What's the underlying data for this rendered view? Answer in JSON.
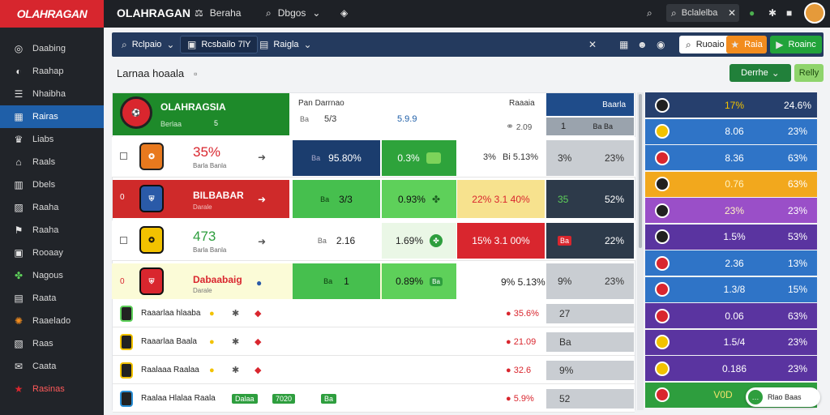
{
  "header": {
    "logo_text": "OLAHRAGAN",
    "brand": "OLAHRAGAN",
    "nav": [
      {
        "label": "Beraha"
      },
      {
        "label": "Dbgos"
      }
    ],
    "search_placeholder": "Bclalelba"
  },
  "sidebar": {
    "items": [
      {
        "label": "Daabing",
        "icon": "globe-icon"
      },
      {
        "label": "Raahap",
        "icon": "circle-icon"
      },
      {
        "label": "Nhaibha",
        "icon": "list-icon"
      },
      {
        "label": "Rairas",
        "icon": "grid-icon",
        "active": true
      },
      {
        "label": "Liabs",
        "icon": "trophy-icon"
      },
      {
        "label": "Raals",
        "icon": "home-icon"
      },
      {
        "label": "Dbels",
        "icon": "dashboard-icon"
      },
      {
        "label": "Raaha",
        "icon": "chart-icon"
      },
      {
        "label": "Raaha",
        "icon": "flag-icon"
      },
      {
        "label": "Rooaay",
        "icon": "box-icon"
      },
      {
        "label": "Nagous",
        "icon": "leaf-icon"
      },
      {
        "label": "Raata",
        "icon": "calendar-icon"
      },
      {
        "label": "Raaelado",
        "icon": "fire-icon"
      },
      {
        "label": "Raas",
        "icon": "note-icon"
      },
      {
        "label": "Caata",
        "icon": "chat-icon"
      },
      {
        "label": "Rasinas",
        "icon": "star-icon"
      }
    ]
  },
  "subbar": {
    "chip1": "Rclpaio",
    "chip2": "Rcsbailo 7lY",
    "chip3": "Raigla",
    "chip4": "Ruoaio",
    "orange_btn": "Raia",
    "green_btn": "Roainc"
  },
  "page": {
    "title": "Larnaa hoaala",
    "btn_green": "Derrhe",
    "btn_light": "Relly"
  },
  "table": {
    "featured_name": "OLAHRAGSIA",
    "featured_sub": "Berlaa",
    "featured_count": "5",
    "col_header1": "Pan Darrnao",
    "col_header2": "Raaaia",
    "col_header3": "Baarla",
    "header_small1": "Ba",
    "header_val1": "5/3",
    "header_val2": "5.9.9",
    "header_val3": "2.09",
    "header_val4": "1",
    "header_small2": "Ba Ba",
    "rows": [
      {
        "pct": "35%",
        "sub": "Barla Banla",
        "c1": "95.80%",
        "c2": "0.3%",
        "c3": "Ba",
        "c4": "3%",
        "c5": "Bi 5.13%",
        "c6": "3%",
        "c7": "23%"
      },
      {
        "name": "BILBABAR",
        "sub": "Darale",
        "c1": "3/3",
        "c2": "0.93%",
        "c3": "Ba",
        "c4": "22% 3.1 40%",
        "c5": "35",
        "c6": "52%"
      },
      {
        "pct": "473",
        "sub": "Barla Banla",
        "c1": "2.16",
        "c2": "1.69%",
        "c3": "Ba",
        "c4": "15% 3.1 00%",
        "c5": "Ba",
        "c6": "22%"
      },
      {
        "name": "Dabaabaig",
        "sub": "Darale",
        "c1": "1",
        "c2": "0.89%",
        "c3": "Ba",
        "c4": "9% 5.13%",
        "c5": "9%",
        "c6": "23%"
      }
    ],
    "list_rows": [
      {
        "name": "Raaarlaa hlaaba",
        "v1": "35.6%",
        "v2": "27"
      },
      {
        "name": "Raaarlaa Baala",
        "v1": "21.09",
        "v2": "Ba"
      },
      {
        "name": "Raalaaa Raalaa",
        "v1": "32.6",
        "v2": "9%"
      },
      {
        "name": "Raalaa Hlalaa Raala",
        "v1": "5.9%",
        "v2": "52",
        "p1": "Dalaa",
        "p2": "7020",
        "p3": "Ba"
      }
    ]
  },
  "side": {
    "rows": [
      {
        "v1": "17%",
        "v2": "24.6%",
        "color": "#263f6d",
        "icon": "#202020"
      },
      {
        "v1": "8.06",
        "v2": "23%",
        "color": "#2f74c7",
        "icon": "#f2c200"
      },
      {
        "v1": "8.36",
        "v2": "63%",
        "color": "#2f74c7",
        "icon": "#d9262e"
      },
      {
        "v1": "0.76",
        "v2": "63%",
        "color": "#f2a81d",
        "icon": "#202020"
      },
      {
        "v1": "23%",
        "v2": "23%",
        "color": "#9a4fc8",
        "icon": "#202020"
      },
      {
        "v1": "1.5%",
        "v2": "53%",
        "color": "#5a34a0",
        "icon": "#202020"
      },
      {
        "v1": "2.36",
        "v2": "13%",
        "color": "#2f74c7",
        "icon": "#d9262e"
      },
      {
        "v1": "1.3/8",
        "v2": "15%",
        "color": "#2f74c7",
        "icon": "#d9262e"
      },
      {
        "v1": "0.06",
        "v2": "63%",
        "color": "#5a34a0",
        "icon": "#d9262e"
      },
      {
        "v1": "1.5/4",
        "v2": "23%",
        "color": "#5a34a0",
        "icon": "#f2c200"
      },
      {
        "v1": "0.186",
        "v2": "23%",
        "color": "#5a34a0",
        "icon": "#f2c200"
      },
      {
        "v1": "V0D",
        "v2": "Rlao Baas",
        "color": "#2e9e3e",
        "icon": "#d9262e"
      }
    ]
  }
}
